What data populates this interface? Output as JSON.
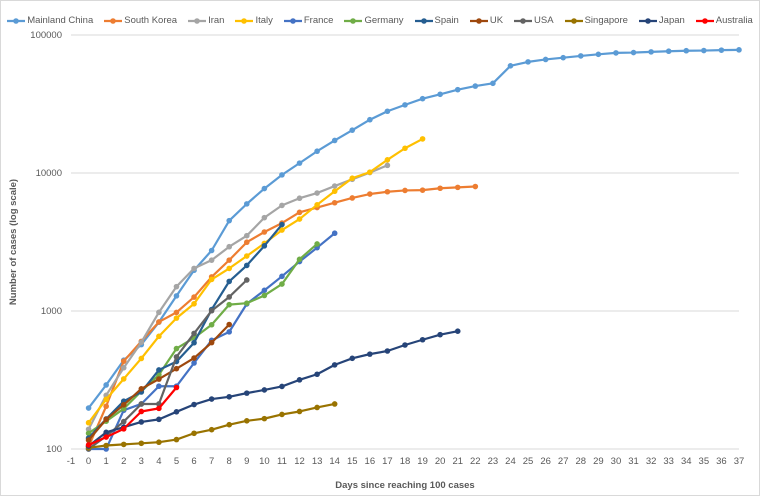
{
  "chart_data": {
    "type": "line",
    "title": "",
    "xlabel": "Days since reaching 100 cases",
    "ylabel": "Number of cases (log scale)",
    "yscale": "log",
    "ylim": [
      100,
      100000
    ],
    "xlim": [
      -1,
      37
    ],
    "yticks": [
      "100",
      "1000",
      "10000",
      "100000"
    ],
    "yticks_values": [
      100,
      1000,
      10000,
      100000
    ],
    "xticks": [
      -1,
      0,
      1,
      2,
      3,
      4,
      5,
      6,
      7,
      8,
      9,
      10,
      11,
      12,
      13,
      14,
      15,
      16,
      17,
      18,
      19,
      20,
      21,
      22,
      23,
      24,
      25,
      26,
      27,
      28,
      29,
      30,
      31,
      32,
      33,
      34,
      35,
      36,
      37
    ],
    "grid": "horizontal",
    "legend": "top",
    "series": [
      {
        "name": "Mainland China",
        "color": "#5b9bd5",
        "values": [
          198,
          291,
          440,
          571,
          830,
          1287,
          1975,
          2744,
          4515,
          5974,
          7711,
          9692,
          11791,
          14380,
          17205,
          20438,
          24324,
          28018,
          31161,
          34546,
          37198,
          40171,
          42638,
          44653,
          59804,
          63851,
          66492,
          68500,
          70548,
          72436,
          74185,
          74576,
          75465,
          76288,
          76936,
          77150,
          77658,
          78064
        ]
      },
      {
        "name": "South Korea",
        "color": "#ed7d31",
        "values": [
          104,
          204,
          433,
          602,
          833,
          977,
          1261,
          1766,
          2337,
          3150,
          3736,
          4335,
          5186,
          5621,
          6088,
          6593,
          7041,
          7313,
          7478,
          7513,
          7755,
          7869,
          7979
        ]
      },
      {
        "name": "Iran",
        "color": "#a5a5a5",
        "values": [
          139,
          245,
          388,
          593,
          978,
          1501,
          2036,
          2336,
          2922,
          3513,
          4747,
          5823,
          6566,
          7161,
          8042,
          9000,
          10075,
          11364
        ]
      },
      {
        "name": "Italy",
        "color": "#ffc000",
        "values": [
          155,
          229,
          322,
          453,
          655,
          888,
          1128,
          1694,
          2036,
          2502,
          3089,
          3858,
          4636,
          5883,
          7375,
          9172,
          10149,
          12462,
          15113,
          17660
        ]
      },
      {
        "name": "France",
        "color": "#4472c4",
        "values": [
          100,
          100,
          191,
          212,
          285,
          285,
          420,
          613,
          706,
          1126,
          1412,
          1784,
          2281,
          2876,
          3661
        ]
      },
      {
        "name": "Germany",
        "color": "#70ad47",
        "values": [
          130,
          159,
          196,
          262,
          345,
          534,
          639,
          795,
          1112,
          1139,
          1296,
          1567,
          2369,
          3062
        ]
      },
      {
        "name": "Spain",
        "color": "#255e91",
        "values": [
          120,
          165,
          222,
          259,
          374,
          430,
          589,
          1024,
          1639,
          2140,
          2965,
          4231
        ]
      },
      {
        "name": "UK",
        "color": "#9e480e",
        "values": [
          116,
          164,
          209,
          273,
          321,
          382,
          456,
          590,
          798
        ]
      },
      {
        "name": "USA",
        "color": "#636363",
        "values": [
          100,
          124,
          158,
          212,
          212,
          465,
          688,
          1004,
          1264,
          1678
        ]
      },
      {
        "name": "Singapore",
        "color": "#997300",
        "values": [
          102,
          106,
          108,
          110,
          112,
          117,
          130,
          138,
          150,
          160,
          166,
          178,
          187,
          200,
          212
        ]
      },
      {
        "name": "Japan",
        "color": "#264478",
        "values": [
          105,
          132,
          144,
          157,
          164,
          186,
          210,
          230,
          239,
          254,
          268,
          284,
          317,
          348,
          407,
          454,
          487,
          513,
          567,
          619,
          674,
          714
        ]
      },
      {
        "name": "Australia",
        "color": "#ff0000",
        "values": [
          107,
          122,
          140,
          187,
          197,
          279
        ]
      }
    ]
  }
}
